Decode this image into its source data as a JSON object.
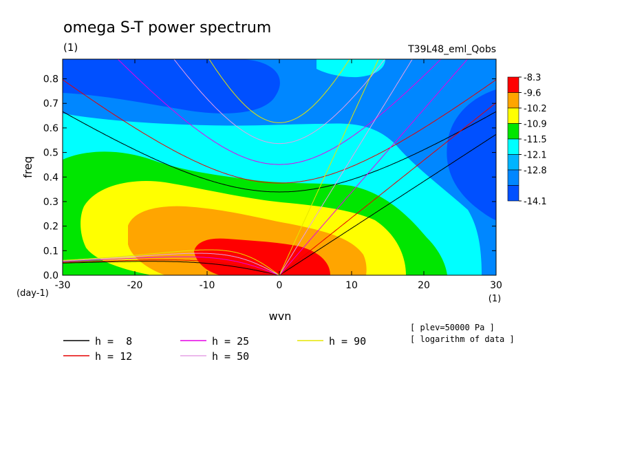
{
  "chart_data": {
    "type": "heatmap",
    "title": "omega S-T power spectrum",
    "subtitle_left": "(1)",
    "subtitle_right": "T39L48_eml_Qobs",
    "xlabel": "wvn",
    "ylabel": "freq",
    "x_units": "(1)",
    "y_units": "(day-1)",
    "xlim": [
      -30,
      30
    ],
    "ylim": [
      0,
      0.88
    ],
    "xticks": [
      "-30",
      "-20",
      "-10",
      "0",
      "10",
      "20",
      "30"
    ],
    "yticks": [
      "0.0",
      "0.1",
      "0.2",
      "0.3",
      "0.4",
      "0.5",
      "0.6",
      "0.7",
      "0.8"
    ],
    "xtick_values": [
      -30,
      -20,
      -10,
      0,
      10,
      20,
      30
    ],
    "ytick_values": [
      0,
      0.1,
      0.2,
      0.3,
      0.4,
      0.5,
      0.6,
      0.7,
      0.8
    ],
    "colorbar": {
      "labels": [
        "-8.3",
        "-9.6",
        "-10.2",
        "-10.9",
        "-11.5",
        "-12.1",
        "-12.8",
        "-14.1"
      ],
      "colors": [
        "#ff0000",
        "#ffa500",
        "#ffff00",
        "#00e600",
        "#00ffff",
        "#00b4ff",
        "#0087ff",
        "#0050ff"
      ]
    },
    "notes": [
      "[ plev=50000 Pa ]",
      "[ logarithm of data ]"
    ],
    "dispersion_curves": [
      {
        "label": "h =  8",
        "h": 8,
        "color": "#000000"
      },
      {
        "label": "h = 12",
        "h": 12,
        "color": "#e60000"
      },
      {
        "label": "h = 25",
        "h": 25,
        "color": "#e600e6"
      },
      {
        "label": "h = 50",
        "h": 50,
        "color": "#e6a0e6"
      },
      {
        "label": "h = 90",
        "h": 90,
        "color": "#e6e600"
      }
    ]
  }
}
